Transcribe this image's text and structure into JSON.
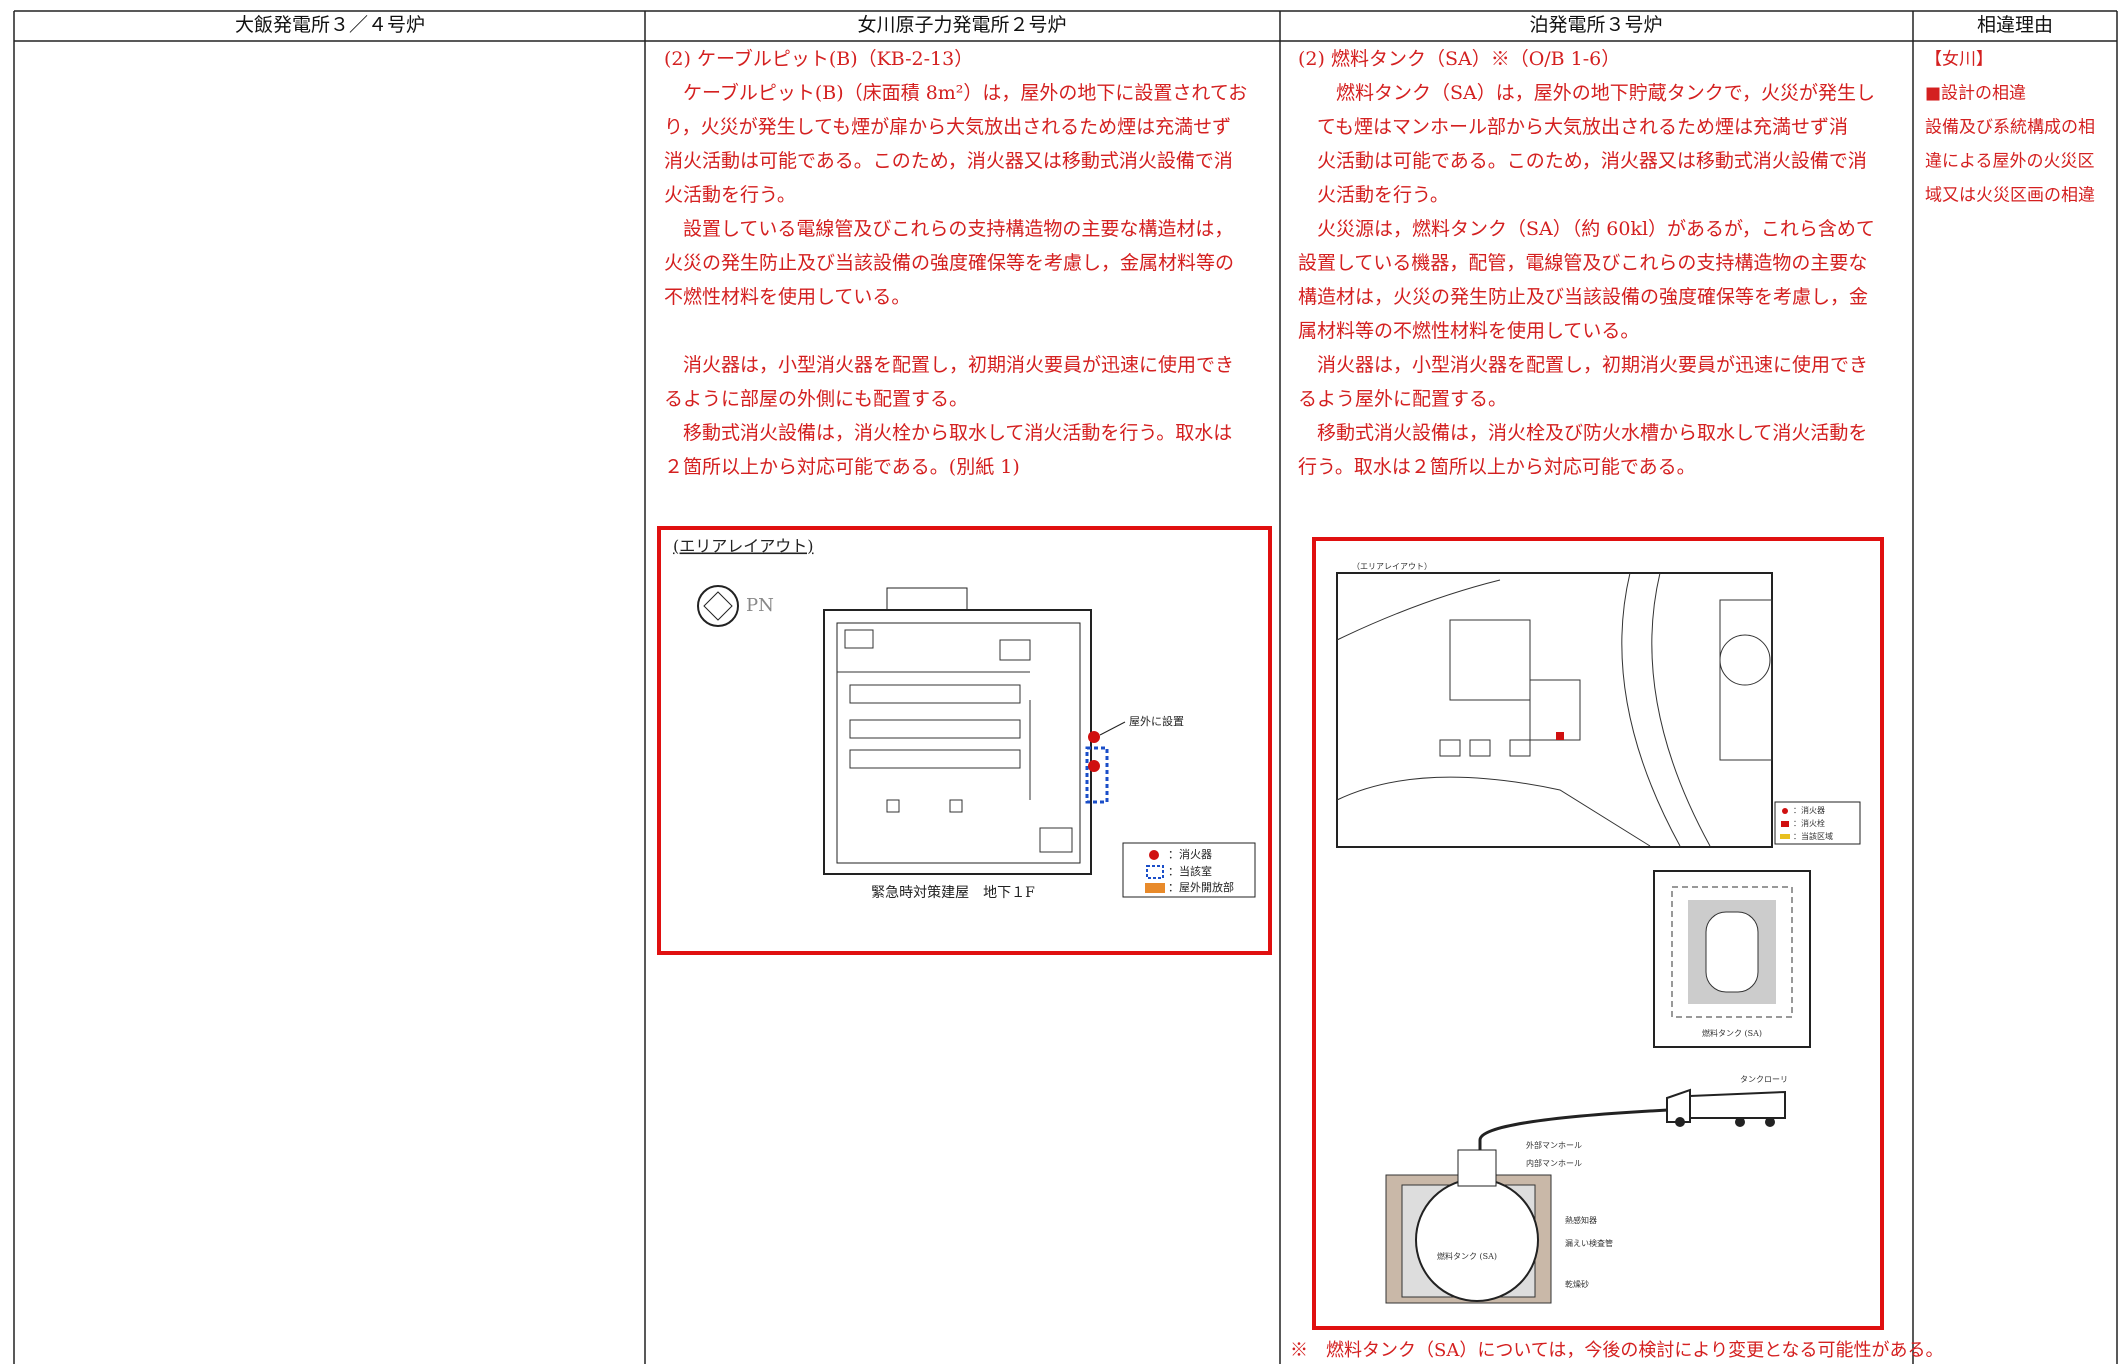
{
  "header": {
    "columns": [
      "大飯発電所３／４号炉",
      "女川原子力発電所２号炉",
      "泊発電所３号炉",
      "相違理由"
    ]
  },
  "onagawa": {
    "blocks": [
      [
        "(2) ケーブルピット(B)（KB-2-13）",
        "　ケーブルピット(B)（床面積 8m²）は，屋外の地下に設置されてお",
        "り，火災が発生しても煙が扉から大気放出されるため煙は充満せず",
        "消火活動は可能である。このため，消火器又は移動式消火設備で消",
        "火活動を行う。",
        "　設置している電線管及びこれらの支持構造物の主要な構造材は，",
        "火災の発生防止及び当該設備の強度確保等を考慮し，金属材料等の",
        "不燃性材料を使用している。"
      ],
      [
        "　消火器は，小型消火器を配置し，初期消火要員が迅速に使用でき",
        "るように部屋の外側にも配置する。",
        "　移動式消火設備は，消火栓から取水して消火活動を行う。取水は",
        "２箇所以上から対応可能である。(別紙 1)"
      ]
    ],
    "figure": {
      "title": "(エリアレイアウト)",
      "compass": "PN",
      "callout": "屋外に設置",
      "caption": "緊急時対策建屋　地下１F",
      "legend": [
        "：消火器",
        "：当該室",
        "：屋外開放部"
      ]
    }
  },
  "tomari": {
    "blocks": [
      [
        "(2) 燃料タンク（SA）※（O/B 1-6）",
        "　　燃料タンク（SA）は，屋外の地下貯蔵タンクで，火災が発生し",
        "　ても煙はマンホール部から大気放出されるため煙は充満せず消",
        "　火活動は可能である。このため，消火器又は移動式消火設備で消",
        "　火活動を行う。",
        "　火災源は，燃料タンク（SA）（約 60kl）があるが，これら含めて",
        "設置している機器，配管，電線管及びこれらの支持構造物の主要な",
        "構造材は，火災の発生防止及び当該設備の強度確保等を考慮し，金",
        "属材料等の不燃性材料を使用している。",
        "　消火器は，小型消火器を配置し，初期消火要員が迅速に使用でき",
        "るよう屋外に配置する。",
        "　移動式消火設備は，消火栓及び防火水槽から取水して消火活動を",
        "行う。取水は２箇所以上から対応可能である。"
      ]
    ],
    "figure": {
      "title": "（エリアレイアウト）",
      "legend": [
        "：消火器",
        "：消火栓",
        "：当該区域"
      ],
      "tank_plan": "燃料タンク (SA)",
      "truck": "タンクローリ",
      "outer_manhole": "外部マンホール",
      "inner_manhole": "内部マンホール",
      "heat_detector": "熱感知器",
      "leak_pipe": "漏えい検査管",
      "tank": "燃料タンク (SA)",
      "sand": "乾燥砂"
    },
    "note": "※　燃料タンク（SA）については，今後の検討により変更となる可能性がある。"
  },
  "reason": {
    "lines": [
      "【女川】",
      "■設計の相違",
      "設備及び系統構成の相",
      "違による屋外の火災区",
      "域又は火災区画の相違"
    ]
  }
}
